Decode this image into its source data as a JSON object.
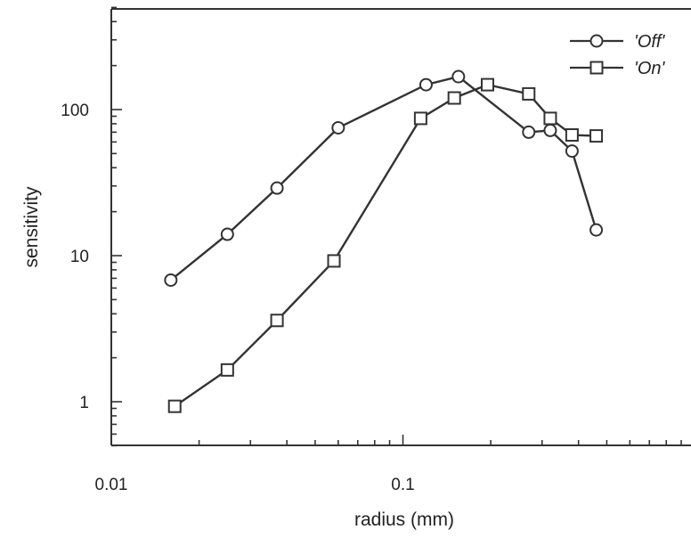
{
  "chart_data": {
    "type": "line",
    "title": "",
    "xlabel": "radius (mm)",
    "ylabel": "sensitivity",
    "xscale": "log",
    "yscale": "log",
    "xlim": [
      0.01,
      1.0
    ],
    "ylim": [
      0.5,
      750
    ],
    "x_ticks": [
      {
        "value": 0.01,
        "label": "0.01"
      },
      {
        "value": 0.1,
        "label": "0.1"
      }
    ],
    "y_ticks": [
      {
        "value": 1,
        "label": "1"
      },
      {
        "value": 10,
        "label": "10"
      },
      {
        "value": 100,
        "label": "100"
      }
    ],
    "grid": false,
    "legend_position": "top-right",
    "series": [
      {
        "name": "'Off'",
        "marker": "circle",
        "x": [
          0.016,
          0.025,
          0.037,
          0.06,
          0.12,
          0.155,
          0.27,
          0.32,
          0.38,
          0.46
        ],
        "y": [
          6.8,
          14,
          29,
          75,
          148,
          168,
          70,
          72,
          52,
          15
        ]
      },
      {
        "name": "'On'",
        "marker": "square",
        "x": [
          0.0165,
          0.025,
          0.037,
          0.058,
          0.115,
          0.15,
          0.195,
          0.27,
          0.32,
          0.38,
          0.46
        ],
        "y": [
          0.93,
          1.65,
          3.6,
          9.2,
          87,
          120,
          148,
          128,
          87,
          67,
          66
        ]
      }
    ]
  }
}
